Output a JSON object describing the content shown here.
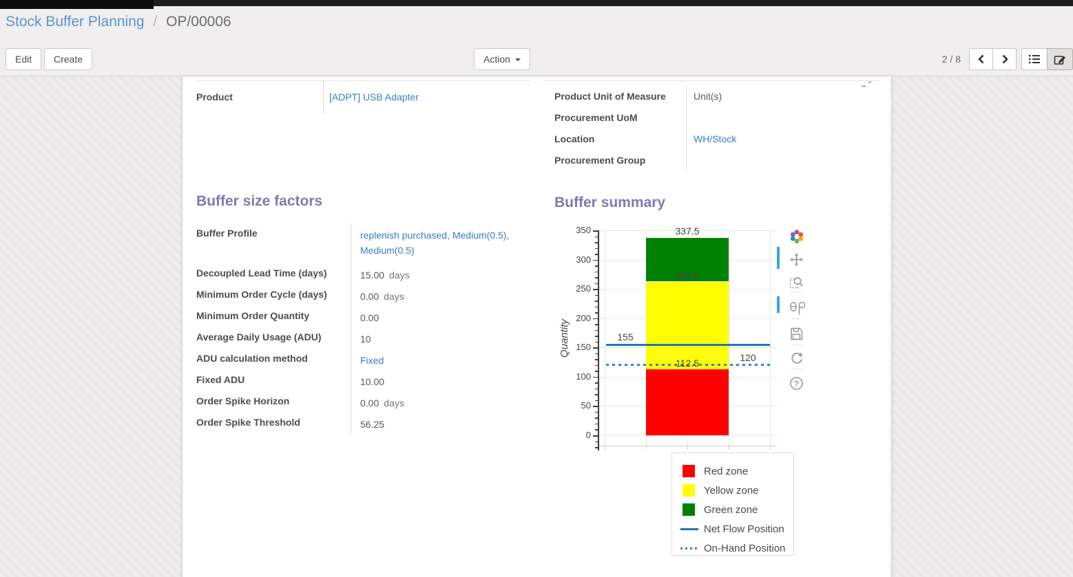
{
  "breadcrumb": {
    "parent": "Stock Buffer Planning",
    "separator": "/",
    "current": "OP/00006"
  },
  "control_panel": {
    "edit_label": "Edit",
    "create_label": "Create",
    "action_label": "Action",
    "pager": "2 / 8",
    "icons": [
      "chevron-left-icon",
      "chevron-right-icon",
      "list-view-icon",
      "form-view-icon"
    ]
  },
  "form": {
    "top_left_rows": [
      {
        "label": "Product",
        "value": "[ADPT] USB Adapter",
        "link": true
      }
    ],
    "top_right_clipped_value": "My Company",
    "top_right_rows": [
      {
        "label": "Product Unit of Measure",
        "value": "Unit(s)",
        "link": false
      },
      {
        "label": "Procurement UoM",
        "value": "",
        "link": false
      },
      {
        "label": "Location",
        "value": "WH/Stock",
        "link": true
      },
      {
        "label": "Procurement Group",
        "value": "",
        "link": false
      }
    ],
    "buffer_factors": {
      "title": "Buffer size factors",
      "rows": [
        {
          "label": "Buffer Profile",
          "value": "replenish purchased, Medium(0.5), Medium(0.5)",
          "link": true,
          "tall": true
        },
        {
          "label": "Decoupled Lead Time (days)",
          "value": "15.00",
          "suffix": "days"
        },
        {
          "label": "Minimum Order Cycle (days)",
          "value": "0.00",
          "suffix": "days"
        },
        {
          "label": "Minimum Order Quantity",
          "value": "0.00"
        },
        {
          "label": "Average Daily Usage (ADU)",
          "value": "10"
        },
        {
          "label": "ADU calculation method",
          "value": "Fixed",
          "link": true
        },
        {
          "label": "Fixed ADU",
          "value": "10.00"
        },
        {
          "label": "Order Spike Horizon",
          "value": "0.00",
          "suffix": "days"
        },
        {
          "label": "Order Spike Threshold",
          "value": "56.25"
        }
      ]
    },
    "buffer_summary_title": "Buffer summary"
  },
  "chart_data": {
    "type": "bar",
    "title": "Buffer summary",
    "xlabel": "",
    "ylabel": "Quantity",
    "ylim": [
      -20,
      352
    ],
    "yticks": [
      0,
      50,
      100,
      150,
      200,
      250,
      300,
      350
    ],
    "minor_tick_step": 10,
    "grid": true,
    "categories": [
      ""
    ],
    "series": [
      {
        "name": "Red zone",
        "values": [
          112.5
        ],
        "color": "#ff0000"
      },
      {
        "name": "Yellow zone",
        "values": [
          150.0
        ],
        "color": "#ffff00"
      },
      {
        "name": "Green zone",
        "values": [
          75.0
        ],
        "color": "#008000"
      }
    ],
    "stack_labels": [
      {
        "text": "112.5",
        "at": 112.5
      },
      {
        "text": "262.5",
        "at": 262.5
      },
      {
        "text": "337.5",
        "at": 337.5
      }
    ],
    "hlines": [
      {
        "name": "Net Flow Position",
        "value": 155,
        "label": "155",
        "style": "solid",
        "color": "#1f77b4",
        "label_pos": "left"
      },
      {
        "name": "On-Hand Position",
        "value": 120,
        "label": "120",
        "style": "dotted",
        "color": "#2e86d0",
        "label_pos": "right"
      }
    ],
    "legend": {
      "position": "bottom-right",
      "items": [
        {
          "label": "Red zone",
          "marker": "square",
          "color": "#ff0000"
        },
        {
          "label": "Yellow zone",
          "marker": "square",
          "color": "#ffff00"
        },
        {
          "label": "Green zone",
          "marker": "square",
          "color": "#008000"
        },
        {
          "label": "Net Flow Position",
          "marker": "line",
          "color": "#1f77b4"
        },
        {
          "label": "On-Hand Position",
          "marker": "dots",
          "color": "#2e86d0"
        }
      ]
    },
    "modebar_icons": [
      "plotly-logo-icon",
      "pan-icon",
      "box-zoom-icon",
      "hover-compare-icon",
      "save-icon",
      "reset-axes-icon",
      "help-icon"
    ]
  },
  "theme": {
    "breadcrumb_link": "#5a94d0",
    "field_link": "#3a7dbd",
    "section_title": "#7c7bad",
    "modebar_active": "#39a5dc"
  }
}
